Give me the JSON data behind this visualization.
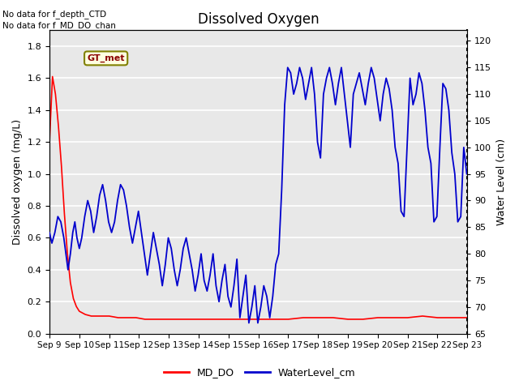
{
  "title": "Dissolved Oxygen",
  "ylabel_left": "Dissolved oxygen (mg/L)",
  "ylabel_right": "Water Level (cm)",
  "note1": "No data for f_depth_CTD",
  "note2": "No data for f_MD_DO_chan",
  "legend_box_label": "GT_met",
  "ylim_left": [
    0.0,
    1.9
  ],
  "ylim_right": [
    65,
    122
  ],
  "yticks_left": [
    0.0,
    0.2,
    0.4,
    0.6,
    0.8,
    1.0,
    1.2,
    1.4,
    1.6,
    1.8
  ],
  "yticks_right": [
    65,
    70,
    75,
    80,
    85,
    90,
    95,
    100,
    105,
    110,
    115,
    120
  ],
  "background_color": "#e8e8e8",
  "md_do_color": "#ff0000",
  "water_level_color": "#0000cd",
  "title_fontsize": 12,
  "label_fontsize": 9,
  "tick_fontsize": 8,
  "xtick_labels": [
    "Sep 9",
    "Sep 10",
    "Sep 11",
    "Sep 12",
    "Sep 13",
    "Sep 14",
    "Sep 15",
    "Sep 16",
    "Sep 17",
    "Sep 18",
    "Sep 19",
    "Sep 20",
    "Sep 21",
    "Sep 22",
    "Sep 23"
  ],
  "md_do_x": [
    0.0,
    0.1,
    0.2,
    0.3,
    0.4,
    0.5,
    0.6,
    0.7,
    0.8,
    0.9,
    1.0,
    1.2,
    1.4,
    1.6,
    1.8,
    2.0,
    2.3,
    2.6,
    2.9,
    3.2,
    3.5,
    3.8,
    4.1,
    4.4,
    4.7,
    5.0,
    5.5,
    6.0,
    6.5,
    7.0,
    7.5,
    8.0,
    8.5,
    9.0,
    9.5,
    10.0,
    10.5,
    11.0,
    11.5,
    12.0,
    12.5,
    13.0,
    13.5,
    14.0
  ],
  "md_do_y": [
    1.2,
    1.61,
    1.5,
    1.3,
    1.05,
    0.75,
    0.5,
    0.32,
    0.22,
    0.17,
    0.14,
    0.12,
    0.11,
    0.11,
    0.11,
    0.11,
    0.1,
    0.1,
    0.1,
    0.09,
    0.09,
    0.09,
    0.09,
    0.09,
    0.09,
    0.09,
    0.09,
    0.09,
    0.09,
    0.09,
    0.09,
    0.09,
    0.1,
    0.1,
    0.1,
    0.09,
    0.09,
    0.1,
    0.1,
    0.1,
    0.11,
    0.1,
    0.1,
    0.1
  ],
  "wl_x": [
    0.0,
    0.08,
    0.18,
    0.28,
    0.38,
    0.48,
    0.55,
    0.62,
    0.7,
    0.78,
    0.85,
    0.92,
    1.0,
    1.08,
    1.18,
    1.28,
    1.38,
    1.48,
    1.58,
    1.68,
    1.78,
    1.88,
    1.98,
    2.08,
    2.18,
    2.28,
    2.38,
    2.48,
    2.58,
    2.68,
    2.78,
    2.88,
    2.98,
    3.08,
    3.18,
    3.28,
    3.38,
    3.48,
    3.58,
    3.68,
    3.78,
    3.88,
    3.98,
    4.08,
    4.18,
    4.28,
    4.38,
    4.48,
    4.58,
    4.68,
    4.78,
    4.88,
    4.98,
    5.08,
    5.18,
    5.28,
    5.38,
    5.48,
    5.58,
    5.68,
    5.78,
    5.88,
    5.98,
    6.08,
    6.18,
    6.28,
    6.38,
    6.48,
    6.58,
    6.68,
    6.78,
    6.88,
    6.98,
    7.08,
    7.18,
    7.28,
    7.38,
    7.48,
    7.58,
    7.68,
    7.78,
    7.88,
    7.98,
    8.08,
    8.18,
    8.28,
    8.38,
    8.48,
    8.58,
    8.68,
    8.78,
    8.88,
    8.98,
    9.08,
    9.18,
    9.28,
    9.38,
    9.48,
    9.58,
    9.68,
    9.78,
    9.88,
    9.98,
    10.08,
    10.18,
    10.28,
    10.38,
    10.48,
    10.58,
    10.68,
    10.78,
    10.88,
    10.98,
    11.08,
    11.18,
    11.28,
    11.38,
    11.48,
    11.58,
    11.68,
    11.78,
    11.88,
    11.98,
    12.08,
    12.18,
    12.28,
    12.38,
    12.48,
    12.58,
    12.68,
    12.78,
    12.88,
    12.98,
    13.08,
    13.18,
    13.28,
    13.38,
    13.48,
    13.58,
    13.68,
    13.78,
    13.88,
    13.98
  ],
  "wl_y": [
    84,
    82,
    84,
    87,
    86,
    83,
    80,
    77,
    80,
    84,
    86,
    83,
    81,
    83,
    87,
    90,
    88,
    84,
    87,
    91,
    93,
    90,
    86,
    84,
    86,
    90,
    93,
    92,
    89,
    85,
    82,
    85,
    88,
    84,
    80,
    76,
    80,
    84,
    81,
    78,
    74,
    78,
    83,
    81,
    77,
    74,
    77,
    81,
    83,
    80,
    77,
    73,
    76,
    80,
    75,
    73,
    76,
    80,
    74,
    71,
    75,
    78,
    72,
    70,
    74,
    79,
    68,
    72,
    76,
    67,
    70,
    74,
    67,
    70,
    74,
    72,
    68,
    72,
    78,
    80,
    92,
    108,
    115,
    114,
    110,
    112,
    115,
    113,
    109,
    112,
    115,
    110,
    101,
    98,
    110,
    113,
    115,
    112,
    108,
    112,
    115,
    110,
    105,
    100,
    110,
    112,
    114,
    111,
    108,
    112,
    115,
    113,
    109,
    105,
    110,
    113,
    111,
    107,
    100,
    97,
    88,
    87,
    100,
    113,
    108,
    110,
    114,
    112,
    107,
    100,
    97,
    86,
    87,
    100,
    112,
    111,
    107,
    99,
    95,
    86,
    87,
    100,
    95
  ]
}
